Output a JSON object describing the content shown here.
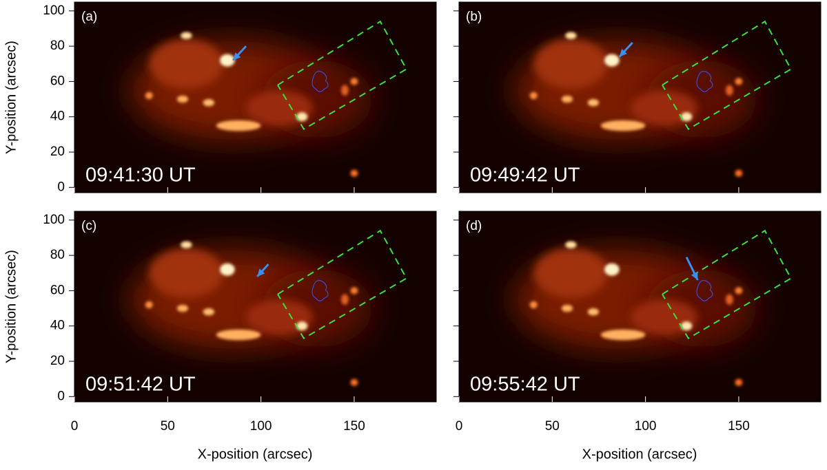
{
  "chart_data": [
    {
      "type": "image",
      "panel_label": "(a)",
      "annotation": "09:41:30 UT",
      "ylabel": "Y-position (arcsec)",
      "xlim": [
        0,
        194
      ],
      "ylim": [
        -3,
        105
      ],
      "yticks": [
        0,
        20,
        40,
        60,
        80,
        100
      ]
    },
    {
      "type": "image",
      "panel_label": "(b)",
      "annotation": "09:49:42 UT",
      "xlim": [
        0,
        194
      ],
      "ylim": [
        -3,
        105
      ]
    },
    {
      "type": "image",
      "panel_label": "(c)",
      "annotation": "09:51:42 UT",
      "ylabel": "Y-position (arcsec)",
      "xlabel": "X-position (arcsec)",
      "xlim": [
        0,
        194
      ],
      "ylim": [
        -3,
        105
      ],
      "xticks": [
        0,
        50,
        100,
        150
      ],
      "yticks": [
        0,
        20,
        40,
        60,
        80,
        100
      ]
    },
    {
      "type": "image",
      "panel_label": "(d)",
      "annotation": "09:55:42 UT",
      "xlabel": "X-position (arcsec)",
      "xlim": [
        0,
        194
      ],
      "ylim": [
        -3,
        105
      ],
      "xticks": [
        0,
        50,
        100,
        150
      ]
    }
  ]
}
